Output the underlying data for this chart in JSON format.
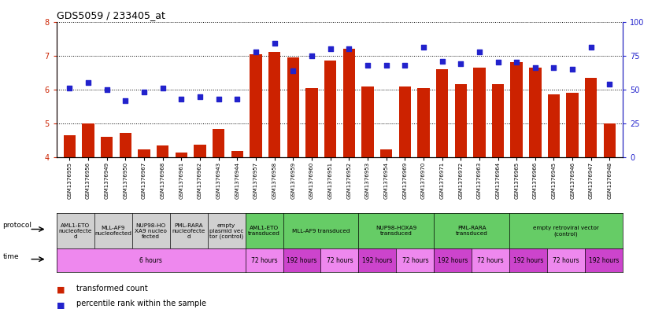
{
  "title": "GDS5059 / 233405_at",
  "samples": [
    "GSM1376955",
    "GSM1376956",
    "GSM1376949",
    "GSM1376950",
    "GSM1376967",
    "GSM1376968",
    "GSM1376961",
    "GSM1376962",
    "GSM1376943",
    "GSM1376944",
    "GSM1376957",
    "GSM1376958",
    "GSM1376959",
    "GSM1376960",
    "GSM1376951",
    "GSM1376952",
    "GSM1376953",
    "GSM1376954",
    "GSM1376969",
    "GSM1376970",
    "GSM1376971",
    "GSM1376972",
    "GSM1376963",
    "GSM1376964",
    "GSM1376965",
    "GSM1376966",
    "GSM1376945",
    "GSM1376946",
    "GSM1376947",
    "GSM1376948"
  ],
  "red_values": [
    4.65,
    5.0,
    4.6,
    4.72,
    4.25,
    4.35,
    4.15,
    4.38,
    4.85,
    4.2,
    7.05,
    7.1,
    6.95,
    6.05,
    6.85,
    7.2,
    6.1,
    4.25,
    6.1,
    6.05,
    6.6,
    6.15,
    6.65,
    6.15,
    6.8,
    6.65,
    5.85,
    5.9,
    6.35,
    5.0
  ],
  "blue_values_pct": [
    51,
    55,
    50,
    42,
    48,
    51,
    43,
    45,
    43,
    43,
    78,
    84,
    64,
    75,
    80,
    80,
    68,
    68,
    68,
    81,
    71,
    69,
    78,
    70,
    70,
    66,
    66,
    65,
    81,
    54
  ],
  "ylim_left": [
    4,
    8
  ],
  "ylim_right": [
    0,
    100
  ],
  "yticks_left": [
    4,
    5,
    6,
    7,
    8
  ],
  "yticks_right": [
    0,
    25,
    50,
    75,
    100
  ],
  "protocol_rows": [
    {
      "label": "AML1-ETO\nnucleofecte\nd",
      "start": 0,
      "end": 2,
      "color": "#d0d0d0"
    },
    {
      "label": "MLL-AF9\nnucleofected",
      "start": 2,
      "end": 4,
      "color": "#d0d0d0"
    },
    {
      "label": "NUP98-HO\nXA9 nucleo\nfected",
      "start": 4,
      "end": 6,
      "color": "#d0d0d0"
    },
    {
      "label": "PML-RARA\nnucleofecte\nd",
      "start": 6,
      "end": 8,
      "color": "#d0d0d0"
    },
    {
      "label": "empty\nplasmid vec\ntor (control)",
      "start": 8,
      "end": 10,
      "color": "#d0d0d0"
    },
    {
      "label": "AML1-ETO\ntransduced",
      "start": 10,
      "end": 12,
      "color": "#66cc66"
    },
    {
      "label": "MLL-AF9 transduced",
      "start": 12,
      "end": 16,
      "color": "#66cc66"
    },
    {
      "label": "NUP98-HOXA9\ntransduced",
      "start": 16,
      "end": 20,
      "color": "#66cc66"
    },
    {
      "label": "PML-RARA\ntransduced",
      "start": 20,
      "end": 24,
      "color": "#66cc66"
    },
    {
      "label": "empty retroviral vector\n(control)",
      "start": 24,
      "end": 30,
      "color": "#66cc66"
    }
  ],
  "time_rows": [
    {
      "label": "6 hours",
      "start": 0,
      "end": 10,
      "color": "#ee88ee"
    },
    {
      "label": "72 hours",
      "start": 10,
      "end": 12,
      "color": "#ee88ee"
    },
    {
      "label": "192 hours",
      "start": 12,
      "end": 14,
      "color": "#cc44cc"
    },
    {
      "label": "72 hours",
      "start": 14,
      "end": 16,
      "color": "#ee88ee"
    },
    {
      "label": "192 hours",
      "start": 16,
      "end": 18,
      "color": "#cc44cc"
    },
    {
      "label": "72 hours",
      "start": 18,
      "end": 20,
      "color": "#ee88ee"
    },
    {
      "label": "192 hours",
      "start": 20,
      "end": 22,
      "color": "#cc44cc"
    },
    {
      "label": "72 hours",
      "start": 22,
      "end": 24,
      "color": "#ee88ee"
    },
    {
      "label": "192 hours",
      "start": 24,
      "end": 26,
      "color": "#cc44cc"
    },
    {
      "label": "72 hours",
      "start": 26,
      "end": 28,
      "color": "#ee88ee"
    },
    {
      "label": "192 hours",
      "start": 28,
      "end": 30,
      "color": "#cc44cc"
    }
  ],
  "bar_color": "#cc2200",
  "dot_color": "#2222cc",
  "bg_color": "#ffffff",
  "left_axis_color": "#cc2200",
  "right_axis_color": "#2222cc",
  "label_left": "protocol",
  "label_time": "time",
  "legend_bar": "transformed count",
  "legend_dot": "percentile rank within the sample"
}
